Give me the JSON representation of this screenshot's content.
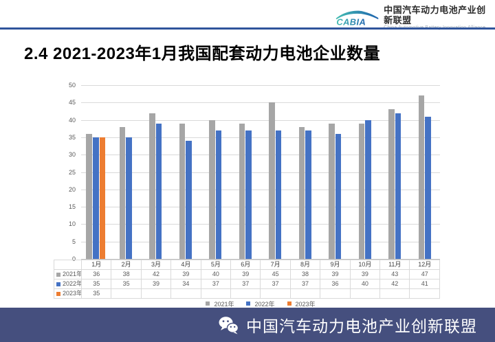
{
  "header": {
    "logo_text": "CABIA",
    "org_cn": "中国汽车动力电池产业创新联盟",
    "org_en": "China Automotive Battery Innovation Alliance"
  },
  "title": "2.4 2021-2023年1月我国配套动力电池企业数量",
  "chart_data": {
    "type": "bar",
    "title": "2021-2023年1月我国配套动力电池企业数量",
    "categories": [
      "1月",
      "2月",
      "3月",
      "4月",
      "5月",
      "6月",
      "7月",
      "8月",
      "9月",
      "10月",
      "11月",
      "12月"
    ],
    "series": [
      {
        "name": "2021年",
        "color": "#a6a6a6",
        "values": [
          36,
          38,
          42,
          39,
          40,
          39,
          45,
          38,
          39,
          39,
          43,
          47
        ]
      },
      {
        "name": "2022年",
        "color": "#4472c4",
        "values": [
          35,
          35,
          39,
          34,
          37,
          37,
          37,
          37,
          36,
          40,
          42,
          41
        ]
      },
      {
        "name": "2023年",
        "color": "#ed7d31",
        "values": [
          35,
          null,
          null,
          null,
          null,
          null,
          null,
          null,
          null,
          null,
          null,
          null
        ]
      }
    ],
    "ylim": [
      0,
      50
    ],
    "ytick_step": 5,
    "grid": true,
    "legend_position": "bottom",
    "data_table_shown": true
  },
  "footer": {
    "text": "中国汽车动力电池产业创新联盟"
  },
  "colors": {
    "accent_line": "#2f549b",
    "footer_bg": "#454f7e",
    "gridline": "#d9d9d9",
    "axis_text": "#595959"
  }
}
